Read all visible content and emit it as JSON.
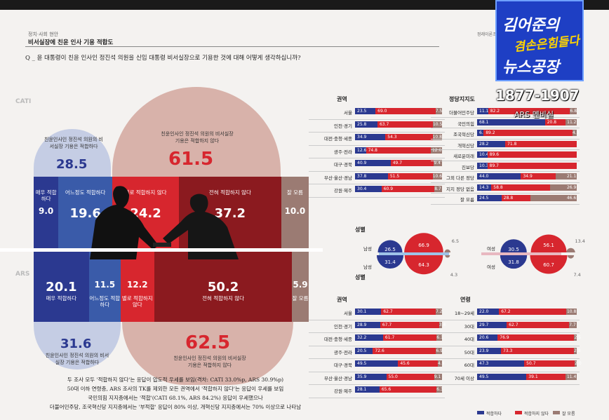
{
  "header": {
    "category": "정치·사회 현안",
    "title": "비서실장에 친윤 인사 기용 적합도",
    "question": "Q _ 윤 대통령이 친윤 인사인 정진석 의원을 신임 대통령 비서실장으로 기용한 것에 대해 어떻게 생각하십니까?",
    "brand_right": "정레이론조사"
  },
  "overlay": {
    "logo_line1": "김어준의",
    "logo_line2": "겸손은힘들다",
    "logo_line3": "뉴스공장",
    "phone": "1877-1907",
    "ars_caption": "ARS 멘비실"
  },
  "side_labels": {
    "cati": "CATI",
    "ars": "ARS"
  },
  "colors": {
    "blue_dark": "#2b3990",
    "blue_mid": "#3a5ba9",
    "red": "#d7262e",
    "red_dark": "#8b1a1f",
    "brown": "#9b7b73",
    "pink": "#d8b2aa",
    "lightblue": "#c5cde4"
  },
  "main_chart": {
    "cati": {
      "appropriate_total": {
        "caption": "친윤인사인 정진석 의원의 비서실장 기용은 적합하다",
        "value": "28.5"
      },
      "inappropriate_total": {
        "caption": "친윤인사인 정진석 의원의 비서실장 기용은 적합하지 않다",
        "value": "61.5"
      },
      "segments": [
        {
          "label": "매우 적합하다",
          "value": "9.0"
        },
        {
          "label": "어느정도 적합하다",
          "value": "19.6"
        },
        {
          "label": "별로 적합하지 않다",
          "value": "24.2"
        },
        {
          "label": "전혀 적합하지 않다",
          "value": "37.2"
        },
        {
          "label": "잘 모름",
          "value": "10.0"
        }
      ]
    },
    "ars": {
      "appropriate_total": {
        "caption": "친윤인사인 정진석 의원의 비서실장 기용은 적합하다",
        "value": "31.6"
      },
      "inappropriate_total": {
        "caption": "친윤인사인 정진석 의원의 비서실장 기용은 적합하지 않다",
        "value": "62.5"
      },
      "segments": [
        {
          "label": "매우 적합하다",
          "value": "20.1"
        },
        {
          "label": "어느정도 적합하다",
          "value": "11.5"
        },
        {
          "label": "별로 적합하지 않다",
          "value": "12.2"
        },
        {
          "label": "전혀 적합하지 않다",
          "value": "50.2"
        },
        {
          "label": "잘 모름",
          "value": "5.9"
        }
      ]
    }
  },
  "footnote": [
    "두 조사 모두 '적합하지 않다'는 응답이 압도적 우세를 보임(격차: CATI 33.0%p, ARS 30.9%p)",
    "50대 이하 연령층, ARS 조사의 TK를 제외한 모든 권역에서 '적합하지 않다'는 응답이 우세를 보임",
    "국민의힘 지지층에서는 '적합'(CATI 68.1%, ARS 84.2%) 응답이 우세했으나",
    "더불어민주당, 조국혁신당 지지층에서는 '부적합' 응답이 80% 이상, 개혁신당 지지층에서는 70% 이상으로 나타남"
  ],
  "chart_data": [
    {
      "type": "bar",
      "title": "권역",
      "survey": "CATI",
      "categories": [
        "서울",
        "인천·경기",
        "대전·충청·세종",
        "광주·전라",
        "대구·경북",
        "부산·울산·경남",
        "강원·제주"
      ],
      "series": [
        {
          "values": [
            23.5,
            25.8,
            34.9,
            12.6,
            40.9,
            37.8,
            30.4
          ]
        },
        {
          "values": [
            69.0,
            63.7,
            54.3,
            74.8,
            49.7,
            51.5,
            60.9
          ]
        },
        {
          "values": [
            7.5,
            10.5,
            10.8,
            12.6,
            9.4,
            10.6,
            8.7
          ]
        }
      ]
    },
    {
      "type": "bar",
      "title": "정당지지도",
      "survey": "CATI",
      "categories": [
        "더불어민주당",
        "국민의힘",
        "조국혁신당",
        "개혁신당",
        "새로운미래",
        "진보당",
        "그외 다른 정당",
        "지지 정당 없음",
        "잘 모름"
      ],
      "series": [
        {
          "values": [
            11.1,
            68.1,
            6.5,
            28.2,
            10.4,
            10.3,
            44.0,
            14.3,
            24.5
          ]
        },
        {
          "values": [
            82.2,
            20.8,
            89.2,
            71.8,
            89.6,
            89.7,
            34.9,
            58.8,
            28.8
          ]
        },
        {
          "values": [
            6.8,
            11.2,
            4.3,
            0,
            0,
            0,
            21.1,
            26.9,
            46.6
          ]
        }
      ]
    },
    {
      "type": "pie",
      "title": "성별",
      "survey": "CATI",
      "categories": [
        "남성",
        "여성"
      ],
      "series": [
        {
          "values": [
            26.5,
            30.5
          ]
        },
        {
          "values": [
            66.9,
            56.1
          ]
        },
        {
          "values": [
            6.5,
            13.4
          ]
        }
      ]
    },
    {
      "type": "pie",
      "title": "성별",
      "survey": "ARS",
      "categories": [
        "남성",
        "여성"
      ],
      "series": [
        {
          "values": [
            31.4,
            31.8
          ]
        },
        {
          "values": [
            64.3,
            60.7
          ]
        },
        {
          "values": [
            4.3,
            7.4
          ]
        }
      ]
    },
    {
      "type": "bar",
      "title": "권역",
      "survey": "ARS",
      "categories": [
        "서울",
        "인천·경기",
        "대전·충청·세종",
        "광주·전라",
        "대구·경북",
        "부산·울산·경남",
        "강원·제주"
      ],
      "series": [
        {
          "values": [
            30.1,
            28.9,
            32.2,
            20.5,
            49.5,
            35.9,
            28.1
          ]
        },
        {
          "values": [
            62.7,
            67.7,
            61.7,
            72.6,
            45.6,
            55.0,
            65.6
          ]
        },
        {
          "values": [
            7.2,
            3.4,
            6.1,
            6.9,
            4.9,
            9.1,
            6.3
          ]
        }
      ]
    },
    {
      "type": "bar",
      "title": "연령",
      "survey": "ARS",
      "categories": [
        "18~29세",
        "30대",
        "40대",
        "50대",
        "60대",
        "70세 이상"
      ],
      "series": [
        {
          "values": [
            22.0,
            29.7,
            20.6,
            23.9,
            47.3,
            49.5
          ]
        },
        {
          "values": [
            67.2,
            62.7,
            76.9,
            73.3,
            50.7,
            39.1
          ]
        },
        {
          "values": [
            10.8,
            7.7,
            2.5,
            2.8,
            2.0,
            11.4
          ]
        }
      ]
    }
  ],
  "legend": [
    "적합하다",
    "적합하지 않다",
    "잘 모름"
  ]
}
